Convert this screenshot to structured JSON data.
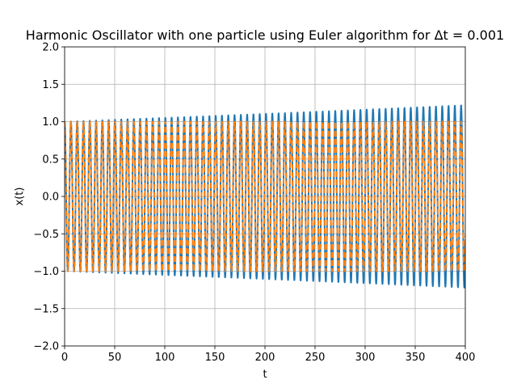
{
  "chart_data": {
    "type": "line",
    "title": "Harmonic Oscillator with one particle using Euler algorithm for Δt = 0.001",
    "xlabel": "t",
    "ylabel": "x(t)",
    "xlim": [
      0,
      400
    ],
    "ylim": [
      -2.0,
      2.0
    ],
    "x_ticks": [
      "0",
      "50",
      "100",
      "150",
      "200",
      "250",
      "300",
      "350",
      "400"
    ],
    "y_ticks": [
      "−2.0",
      "−1.5",
      "−1.0",
      "−0.5",
      "0.0",
      "0.5",
      "1.0",
      "1.5",
      "2.0"
    ],
    "grid": true,
    "legend": false,
    "series": [
      {
        "style": "solid",
        "color": "#1f77b4",
        "function": "cosine with slowly growing amplitude",
        "omega": 1.0,
        "amplitude_start": 1.0,
        "amplitude_end": 1.22,
        "dt": 0.001
      },
      {
        "style": "dashed",
        "color": "#ff7f0e",
        "function": "cosine with constant amplitude",
        "omega": 1.0,
        "amplitude": 1.0
      }
    ]
  }
}
